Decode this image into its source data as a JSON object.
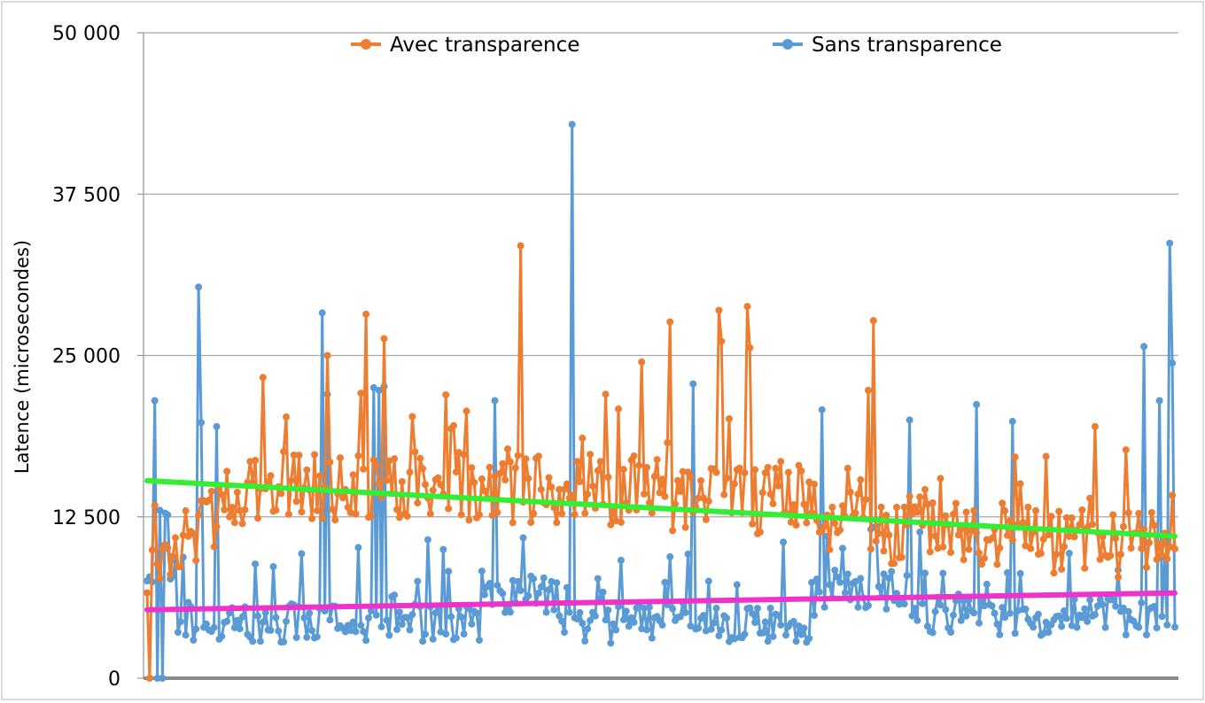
{
  "chart_data": {
    "type": "line",
    "title": "",
    "xlabel": "",
    "ylabel": "Latence (microsecondes)",
    "ylim": [
      0,
      50000
    ],
    "y_ticks": [
      0,
      12500,
      25000,
      37500,
      50000
    ],
    "y_tick_labels": [
      "0",
      "12 500",
      "25 000",
      "37 500",
      "50 000"
    ],
    "grid": "horizontal",
    "legend_position": "top",
    "n_points": 400,
    "series": [
      {
        "name": "Avec transparence",
        "color": "#ED7D31",
        "marker": "circle",
        "spikes": [
          {
            "x": 1,
            "y": 0
          },
          {
            "x": 45,
            "y": 23300
          },
          {
            "x": 70,
            "y": 25000
          },
          {
            "x": 85,
            "y": 28200
          },
          {
            "x": 92,
            "y": 26300
          },
          {
            "x": 145,
            "y": 33500
          },
          {
            "x": 178,
            "y": 22000
          },
          {
            "x": 192,
            "y": 24500
          },
          {
            "x": 203,
            "y": 27600
          },
          {
            "x": 222,
            "y": 28500
          },
          {
            "x": 223,
            "y": 26100
          },
          {
            "x": 233,
            "y": 28800
          },
          {
            "x": 234,
            "y": 25600
          },
          {
            "x": 280,
            "y": 22300
          },
          {
            "x": 282,
            "y": 27700
          },
          {
            "x": 368,
            "y": 19500
          }
        ]
      },
      {
        "name": "Sans transparence",
        "color": "#5B9BD5",
        "marker": "circle",
        "spikes": [
          {
            "x": 3,
            "y": 21500
          },
          {
            "x": 4,
            "y": 0
          },
          {
            "x": 6,
            "y": 0
          },
          {
            "x": 20,
            "y": 30300
          },
          {
            "x": 21,
            "y": 19800
          },
          {
            "x": 27,
            "y": 19500
          },
          {
            "x": 68,
            "y": 28300
          },
          {
            "x": 70,
            "y": 22000
          },
          {
            "x": 88,
            "y": 22500
          },
          {
            "x": 90,
            "y": 22300
          },
          {
            "x": 92,
            "y": 22600
          },
          {
            "x": 135,
            "y": 21500
          },
          {
            "x": 165,
            "y": 42900
          },
          {
            "x": 212,
            "y": 22800
          },
          {
            "x": 262,
            "y": 20800
          },
          {
            "x": 296,
            "y": 20000
          },
          {
            "x": 322,
            "y": 21200
          },
          {
            "x": 336,
            "y": 19900
          },
          {
            "x": 387,
            "y": 25700
          },
          {
            "x": 393,
            "y": 21500
          },
          {
            "x": 397,
            "y": 33700
          },
          {
            "x": 398,
            "y": 24400
          }
        ]
      }
    ],
    "trendlines": [
      {
        "series": "Avec transparence",
        "color": "#33EE33",
        "start": 15300,
        "end": 11000
      },
      {
        "series": "Sans transparence",
        "color": "#EE33CC",
        "start": 5300,
        "end": 6600
      }
    ]
  }
}
